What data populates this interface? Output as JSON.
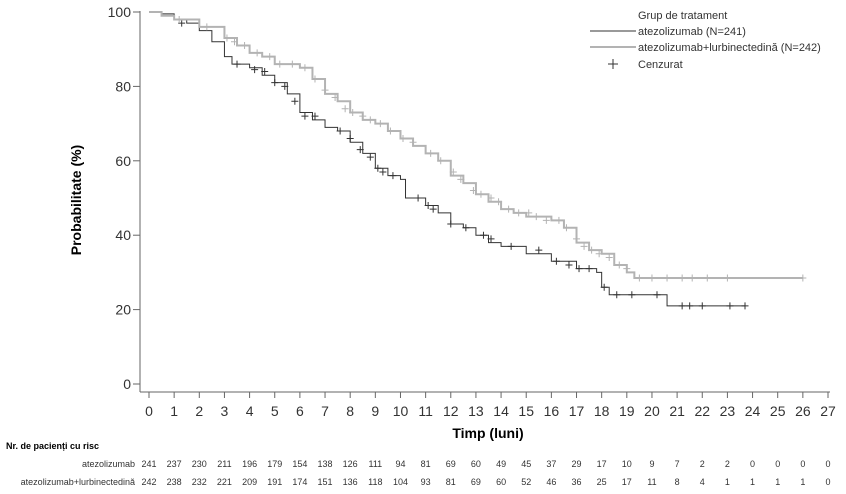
{
  "chart_data": {
    "type": "line",
    "xlabel": "Timp (luni)",
    "ylabel": "Probabilitate (%)",
    "xlim": [
      0,
      27
    ],
    "ylim": [
      0,
      100
    ],
    "x_ticks": [
      0,
      1,
      2,
      3,
      4,
      5,
      6,
      7,
      8,
      9,
      10,
      11,
      12,
      13,
      14,
      15,
      16,
      17,
      18,
      19,
      20,
      21,
      22,
      23,
      24,
      25,
      26,
      27
    ],
    "y_ticks": [
      0,
      20,
      40,
      60,
      80,
      100
    ],
    "legend": {
      "title": "Grup de tratament",
      "censored_label": "Cenzurat",
      "placement": "top-right"
    },
    "series": [
      {
        "name": "atezolizumab (N=241)",
        "color": "#333333",
        "steps": [
          [
            0,
            100
          ],
          [
            0.5,
            99.5
          ],
          [
            1,
            98
          ],
          [
            1.5,
            97
          ],
          [
            2,
            95
          ],
          [
            2.5,
            92
          ],
          [
            3,
            88
          ],
          [
            3.3,
            86
          ],
          [
            4,
            85
          ],
          [
            4.5,
            83
          ],
          [
            5,
            81
          ],
          [
            5.5,
            78
          ],
          [
            6,
            73
          ],
          [
            6.5,
            71
          ],
          [
            7,
            69
          ],
          [
            7.5,
            68
          ],
          [
            8,
            65
          ],
          [
            8.5,
            62
          ],
          [
            9,
            58
          ],
          [
            9.5,
            56
          ],
          [
            10,
            55
          ],
          [
            10.2,
            50
          ],
          [
            11,
            48
          ],
          [
            11.5,
            46
          ],
          [
            12,
            43
          ],
          [
            12.5,
            42
          ],
          [
            13,
            40
          ],
          [
            13.5,
            38
          ],
          [
            14,
            37
          ],
          [
            15,
            35
          ],
          [
            16,
            33
          ],
          [
            17,
            31
          ],
          [
            17.8,
            30
          ],
          [
            18,
            26
          ],
          [
            18.3,
            24
          ],
          [
            20.6,
            21
          ],
          [
            23.7,
            21
          ]
        ],
        "censored": [
          [
            1.3,
            97
          ],
          [
            3.5,
            86
          ],
          [
            4.2,
            84.5
          ],
          [
            4.6,
            84
          ],
          [
            5,
            81
          ],
          [
            5.4,
            80
          ],
          [
            5.8,
            76
          ],
          [
            6.2,
            72
          ],
          [
            6.6,
            72
          ],
          [
            7.6,
            68
          ],
          [
            8,
            66
          ],
          [
            8.4,
            63
          ],
          [
            8.8,
            61
          ],
          [
            9.1,
            58
          ],
          [
            9.3,
            57
          ],
          [
            9.7,
            56
          ],
          [
            10.7,
            50
          ],
          [
            11.1,
            48
          ],
          [
            11.3,
            47
          ],
          [
            12,
            43
          ],
          [
            12.6,
            42
          ],
          [
            13.3,
            40
          ],
          [
            13.6,
            39
          ],
          [
            14.4,
            37
          ],
          [
            15.5,
            36
          ],
          [
            16.2,
            33
          ],
          [
            16.7,
            32
          ],
          [
            17.1,
            31
          ],
          [
            17.5,
            31
          ],
          [
            18.1,
            26
          ],
          [
            18.6,
            24
          ],
          [
            19.2,
            24
          ],
          [
            20.2,
            24
          ],
          [
            21.2,
            21
          ],
          [
            21.5,
            21
          ],
          [
            22,
            21
          ],
          [
            23.1,
            21
          ],
          [
            23.7,
            21
          ]
        ]
      },
      {
        "name": "atezolizumab+lurbinectedină (N=242)",
        "color": "#b3b3b3",
        "steps": [
          [
            0,
            100
          ],
          [
            0.5,
            99
          ],
          [
            1,
            98
          ],
          [
            2,
            96
          ],
          [
            3,
            93
          ],
          [
            3.5,
            91
          ],
          [
            4,
            89
          ],
          [
            4.5,
            88
          ],
          [
            5,
            86
          ],
          [
            6,
            85
          ],
          [
            6.5,
            82
          ],
          [
            7,
            78
          ],
          [
            7.5,
            76
          ],
          [
            8,
            73
          ],
          [
            8.5,
            71
          ],
          [
            9,
            70
          ],
          [
            9.5,
            68
          ],
          [
            10,
            66
          ],
          [
            10.5,
            64
          ],
          [
            11,
            62
          ],
          [
            11.5,
            60
          ],
          [
            12,
            56
          ],
          [
            12.5,
            54
          ],
          [
            13,
            51
          ],
          [
            13.5,
            49
          ],
          [
            14,
            47
          ],
          [
            14.5,
            46
          ],
          [
            15,
            45
          ],
          [
            16,
            44
          ],
          [
            16.5,
            42
          ],
          [
            17,
            38
          ],
          [
            17.5,
            36
          ],
          [
            18,
            35
          ],
          [
            18.5,
            32
          ],
          [
            19,
            30
          ],
          [
            19.3,
            28.5
          ],
          [
            26,
            28.5
          ]
        ],
        "censored": [
          [
            1.2,
            98
          ],
          [
            2.3,
            96
          ],
          [
            3.1,
            93
          ],
          [
            3.4,
            92
          ],
          [
            3.8,
            91
          ],
          [
            4.3,
            89
          ],
          [
            4.8,
            88
          ],
          [
            5.2,
            86
          ],
          [
            5.7,
            86
          ],
          [
            6.2,
            85
          ],
          [
            6.6,
            82
          ],
          [
            7,
            79
          ],
          [
            7.4,
            77
          ],
          [
            7.8,
            74
          ],
          [
            8.1,
            73
          ],
          [
            8.5,
            72
          ],
          [
            8.8,
            71
          ],
          [
            9.2,
            70
          ],
          [
            9.6,
            68
          ],
          [
            10.1,
            66
          ],
          [
            10.5,
            65
          ],
          [
            11.2,
            62
          ],
          [
            11.6,
            60
          ],
          [
            12.1,
            57
          ],
          [
            12.4,
            55
          ],
          [
            12.9,
            52
          ],
          [
            13.2,
            51
          ],
          [
            13.6,
            50
          ],
          [
            13.9,
            49
          ],
          [
            14.3,
            47
          ],
          [
            14.7,
            46
          ],
          [
            15.1,
            46
          ],
          [
            15.4,
            45
          ],
          [
            15.8,
            44
          ],
          [
            16.3,
            44
          ],
          [
            16.6,
            42
          ],
          [
            17,
            39
          ],
          [
            17.3,
            37
          ],
          [
            17.6,
            36
          ],
          [
            17.9,
            35
          ],
          [
            18.3,
            34
          ],
          [
            18.7,
            32
          ],
          [
            19,
            31
          ],
          [
            19.5,
            28.5
          ],
          [
            20,
            28.5
          ],
          [
            20.6,
            28.5
          ],
          [
            21.2,
            28.5
          ],
          [
            21.6,
            28.5
          ],
          [
            22.2,
            28.5
          ],
          [
            23,
            28.5
          ],
          [
            26,
            28.5
          ]
        ]
      }
    ]
  },
  "risk_table": {
    "header": "Nr. de pacienți cu risc",
    "rows": [
      {
        "label": "atezolizumab",
        "values": [
          "241",
          "237",
          "230",
          "211",
          "196",
          "179",
          "154",
          "138",
          "126",
          "111",
          "94",
          "81",
          "69",
          "60",
          "49",
          "45",
          "37",
          "29",
          "17",
          "10",
          "9",
          "7",
          "2",
          "2",
          "0",
          "0",
          "0",
          "0"
        ]
      },
      {
        "label": "atezolizumab+lurbinectedină",
        "values": [
          "242",
          "238",
          "232",
          "221",
          "209",
          "191",
          "174",
          "151",
          "136",
          "118",
          "104",
          "93",
          "81",
          "69",
          "60",
          "52",
          "46",
          "36",
          "25",
          "17",
          "11",
          "8",
          "4",
          "1",
          "1",
          "1",
          "1",
          "0"
        ]
      }
    ]
  }
}
